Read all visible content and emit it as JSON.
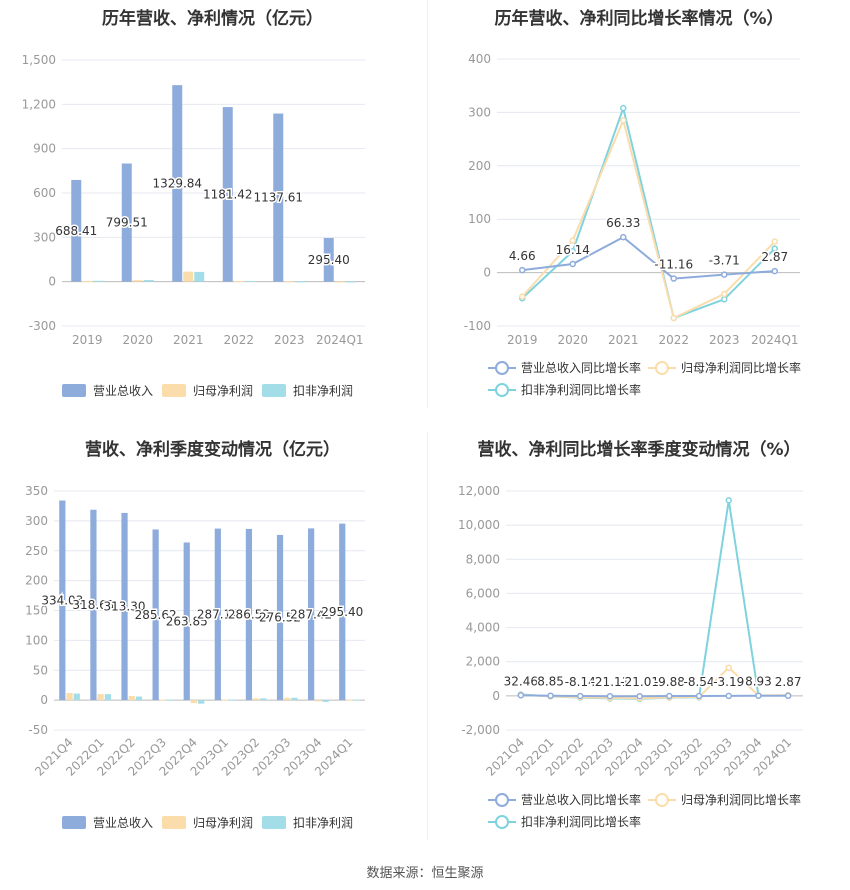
{
  "source_label": "数据来源：恒生聚源",
  "colors": {
    "revenue": "#8eacdb",
    "net_profit": "#fbdcab",
    "deducted_profit": "#a3dee8",
    "rev_line": "#8eacdb",
    "np_line": "#fbdcab",
    "dp_line": "#7fd3de",
    "grid": "#e4e8f0",
    "axis_text": "#999999",
    "label_text": "#333333"
  },
  "chart_data": [
    {
      "id": "annual-bar",
      "type": "bar",
      "title": "历年营收、净利情况（亿元）",
      "categories": [
        "2019",
        "2020",
        "2021",
        "2022",
        "2023",
        "2024Q1"
      ],
      "ylim": [
        -300,
        1500
      ],
      "yticks": [
        -300,
        0,
        300,
        600,
        900,
        1200,
        1500
      ],
      "ytick_labels": [
        "-300",
        "0",
        "300",
        "600",
        "900",
        "1,200",
        "1,500"
      ],
      "series": [
        {
          "name": "营业总收入",
          "values": [
            688.41,
            799.51,
            1329.84,
            1181.42,
            1137.61,
            295.4
          ],
          "labels": [
            "688.41",
            "799.51",
            "1329.84",
            "1181.42",
            "1137.61",
            "295.40"
          ]
        },
        {
          "name": "归母净利润",
          "values": [
            4,
            10,
            68,
            5,
            3,
            1
          ]
        },
        {
          "name": "扣非净利润",
          "values": [
            6,
            11,
            66,
            5,
            2,
            1
          ]
        }
      ],
      "legend_position": "bottom",
      "grid": true
    },
    {
      "id": "annual-line",
      "type": "line",
      "title": "历年营收、净利同比增长率情况（%）",
      "categories": [
        "2019",
        "2020",
        "2021",
        "2022",
        "2023",
        "2024Q1"
      ],
      "ylim": [
        -100,
        400
      ],
      "yticks": [
        -100,
        0,
        100,
        200,
        300,
        400
      ],
      "ytick_labels": [
        "-100",
        "0",
        "100",
        "200",
        "300",
        "400"
      ],
      "series": [
        {
          "name": "营业总收入同比增长率",
          "values": [
            4.66,
            16.14,
            66.33,
            -11.16,
            -3.71,
            2.87
          ],
          "labels": [
            "4.66",
            "16.14",
            "66.33",
            "-11.16",
            "-3.71",
            "2.87"
          ]
        },
        {
          "name": "归母净利润同比增长率",
          "values": [
            -45,
            60,
            285,
            -85,
            -40,
            58
          ]
        },
        {
          "name": "扣非净利润同比增长率",
          "values": [
            -48,
            40,
            308,
            -85,
            -50,
            45
          ]
        }
      ],
      "legend_position": "bottom",
      "grid": true
    },
    {
      "id": "quarter-bar",
      "type": "bar",
      "title": "营收、净利季度变动情况（亿元）",
      "categories": [
        "2021Q4",
        "2022Q1",
        "2022Q2",
        "2022Q3",
        "2022Q4",
        "2023Q1",
        "2023Q2",
        "2023Q3",
        "2023Q4",
        "2024Q1"
      ],
      "ylim": [
        -50,
        350
      ],
      "yticks": [
        -50,
        0,
        50,
        100,
        150,
        200,
        250,
        300,
        350
      ],
      "ytick_labels": [
        "-50",
        "0",
        "50",
        "100",
        "150",
        "200",
        "250",
        "300",
        "350"
      ],
      "series": [
        {
          "name": "营业总收入",
          "values": [
            334.03,
            318.63,
            313.3,
            285.62,
            263.85,
            287.12,
            286.53,
            276.52,
            287.42,
            295.4
          ],
          "labels": [
            "334.03",
            "318.63",
            "313.30",
            "285.62",
            "263.85",
            "287.12",
            "286.53",
            "276.52",
            "287.42",
            "295.40"
          ]
        },
        {
          "name": "归母净利润",
          "values": [
            12,
            10,
            7,
            1,
            -5,
            1,
            3,
            4,
            -2,
            1
          ]
        },
        {
          "name": "扣非净利润",
          "values": [
            11,
            10,
            6,
            1,
            -6,
            1,
            3,
            4,
            -3,
            1
          ]
        }
      ],
      "legend_position": "bottom",
      "grid": true
    },
    {
      "id": "quarter-line",
      "type": "line",
      "title": "营收、净利同比增长率季度变动情况（%）",
      "categories": [
        "2021Q4",
        "2022Q1",
        "2022Q2",
        "2022Q3",
        "2022Q4",
        "2023Q1",
        "2023Q2",
        "2023Q3",
        "2023Q4",
        "2024Q1"
      ],
      "ylim": [
        -2000,
        12000
      ],
      "yticks": [
        -2000,
        0,
        2000,
        4000,
        6000,
        8000,
        10000,
        12000
      ],
      "ytick_labels": [
        "-2,000",
        "0",
        "2,000",
        "4,000",
        "6,000",
        "8,000",
        "10,000",
        "12,000"
      ],
      "series": [
        {
          "name": "营业总收入同比增长率",
          "values": [
            32.46,
            8.85,
            -8.14,
            -21.11,
            -21.01,
            -9.88,
            -8.54,
            -3.19,
            8.93,
            2.87
          ],
          "labels": [
            "32.46",
            "8.85",
            "-8.14",
            "-21.11",
            "-21.01",
            "-9.88",
            "-8.54",
            "-3.19",
            "8.93",
            "2.87"
          ]
        },
        {
          "name": "归母净利润同比增长率",
          "values": [
            60,
            -20,
            -80,
            -120,
            -150,
            -90,
            -60,
            1650,
            30,
            40
          ]
        },
        {
          "name": "扣非净利润同比增长率",
          "values": [
            80,
            -30,
            -100,
            -150,
            -180,
            -100,
            -80,
            11450,
            20,
            30
          ]
        }
      ],
      "legend_position": "bottom",
      "grid": true
    }
  ]
}
